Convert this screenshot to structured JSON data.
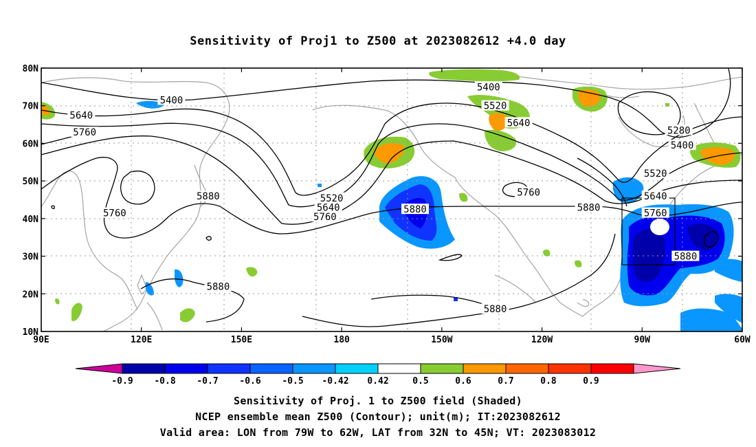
{
  "title": "Sensitivity of Proj1 to Z500 at 2023082612 +4.0 day",
  "map": {
    "lon_range": [
      90,
      300
    ],
    "lat_range": [
      10,
      80
    ],
    "lat_ticks": [
      "10N",
      "20N",
      "30N",
      "40N",
      "50N",
      "60N",
      "70N",
      "80N"
    ],
    "lon_ticks": [
      "90E",
      "120E",
      "150E",
      "180",
      "150W",
      "120W",
      "90W",
      "60W"
    ],
    "gridlines": true
  },
  "contour_labels": [
    {
      "text": "5400",
      "lon": 129,
      "lat": 71.5
    },
    {
      "text": "5640",
      "lon": 102,
      "lat": 67.5
    },
    {
      "text": "5760",
      "lon": 103,
      "lat": 63
    },
    {
      "text": "5880",
      "lon": 140,
      "lat": 46
    },
    {
      "text": "5760",
      "lon": 112,
      "lat": 41.5
    },
    {
      "text": "5880",
      "lon": 143,
      "lat": 22
    },
    {
      "text": "5520",
      "lon": 177,
      "lat": 45.5
    },
    {
      "text": "5640",
      "lon": 176,
      "lat": 43
    },
    {
      "text": "5760",
      "lon": 175,
      "lat": 40.5
    },
    {
      "text": "5880",
      "lon": 202,
      "lat": 42.5
    },
    {
      "text": "5400",
      "lon": 224,
      "lat": 75
    },
    {
      "text": "5520",
      "lon": 226,
      "lat": 70
    },
    {
      "text": "5640",
      "lon": 233,
      "lat": 65.5
    },
    {
      "text": "5760",
      "lon": 236,
      "lat": 47
    },
    {
      "text": "5880",
      "lon": 254,
      "lat": 43
    },
    {
      "text": "5880",
      "lon": 226,
      "lat": 16
    },
    {
      "text": "5280",
      "lon": 281,
      "lat": 63.5
    },
    {
      "text": "5400",
      "lon": 282,
      "lat": 59.5
    },
    {
      "text": "5520",
      "lon": 274,
      "lat": 52
    },
    {
      "text": "5640",
      "lon": 274,
      "lat": 46
    },
    {
      "text": "5760",
      "lon": 274,
      "lat": 41.5
    },
    {
      "text": "5880",
      "lon": 283,
      "lat": 30
    }
  ],
  "valid_area": {
    "lon_west": 281,
    "lon_east": 298,
    "lat_south": 32,
    "lat_north": 45
  },
  "colorbar": {
    "labels": [
      "-0.9",
      "-0.8",
      "-0.7",
      "-0.6",
      "-0.5",
      "-0.42",
      "0.42",
      "0.5",
      "0.6",
      "0.7",
      "0.8",
      "0.9"
    ],
    "colors": [
      "#cc0099",
      "#0000aa",
      "#0000ee",
      "#1133ff",
      "#0a64ff",
      "#0a96ff",
      "#00d0ff",
      "#ffffff",
      "#88cc33",
      "#ff9900",
      "#ff6600",
      "#ff3300",
      "#ff0000",
      "#ff99cc"
    ]
  },
  "captions": {
    "line1": "Sensitivity of Proj. 1 to Z500 field (Shaded)",
    "line2": "NCEP ensemble mean Z500 (Contour); unit(m); IT:2023082612",
    "line3": "Valid area: LON from 79W to 62W, LAT from 32N to 45N; VT: 2023083012"
  }
}
